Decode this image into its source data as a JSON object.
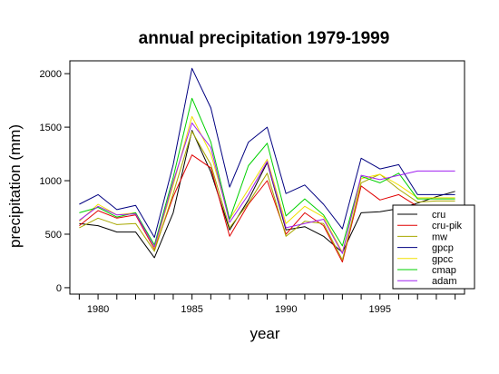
{
  "chart_data": {
    "type": "line",
    "title": "annual precipitation 1979-1999",
    "xlabel": "year",
    "ylabel": "precipitation (mm)",
    "x": [
      1979,
      1980,
      1981,
      1982,
      1983,
      1984,
      1985,
      1986,
      1987,
      1988,
      1989,
      1990,
      1991,
      1992,
      1993,
      1994,
      1995,
      1996,
      1997,
      1998,
      1999
    ],
    "xlim": [
      1978.5,
      1999.5
    ],
    "ylim": [
      -60,
      2120
    ],
    "xticks": [
      1980,
      1985,
      1990,
      1995
    ],
    "yticks": [
      0,
      500,
      1000,
      1500,
      2000
    ],
    "grid": false,
    "legend_position": "bottom-right",
    "series": [
      {
        "name": "cru",
        "color": "#000000",
        "values": [
          600,
          580,
          520,
          520,
          280,
          700,
          1470,
          1080,
          540,
          820,
          1170,
          540,
          570,
          480,
          330,
          700,
          710,
          740,
          790,
          850,
          900
        ]
      },
      {
        "name": "cru-pik",
        "color": "#e00000",
        "values": [
          580,
          720,
          650,
          680,
          360,
          850,
          1240,
          1120,
          480,
          780,
          1000,
          500,
          700,
          580,
          240,
          950,
          820,
          870,
          760,
          760,
          760
        ]
      },
      {
        "name": "mw",
        "color": "#a8a800",
        "values": [
          560,
          650,
          590,
          600,
          340,
          880,
          1460,
          1150,
          560,
          790,
          1070,
          480,
          620,
          600,
          260,
          980,
          1060,
          920,
          800,
          810,
          810
        ]
      },
      {
        "name": "gpcp",
        "color": "#000080",
        "values": [
          780,
          870,
          730,
          770,
          470,
          1150,
          2050,
          1680,
          940,
          1360,
          1500,
          880,
          960,
          780,
          550,
          1210,
          1110,
          1150,
          870,
          870,
          870
        ]
      },
      {
        "name": "gpcc",
        "color": "#f0e000",
        "values": [
          620,
          780,
          680,
          700,
          370,
          960,
          1600,
          1250,
          640,
          920,
          1200,
          600,
          760,
          660,
          330,
          1020,
          1060,
          960,
          840,
          840,
          840
        ]
      },
      {
        "name": "cmap",
        "color": "#00d000",
        "values": [
          700,
          750,
          660,
          700,
          400,
          1030,
          1770,
          1360,
          640,
          1140,
          1350,
          670,
          830,
          680,
          390,
          1040,
          980,
          1070,
          830,
          830,
          830
        ]
      },
      {
        "name": "adam",
        "color": "#a020f0",
        "values": [
          630,
          760,
          680,
          690,
          380,
          990,
          1540,
          1310,
          610,
          870,
          1180,
          560,
          600,
          640,
          320,
          1050,
          1010,
          1050,
          1090,
          1090,
          1090
        ]
      }
    ]
  }
}
